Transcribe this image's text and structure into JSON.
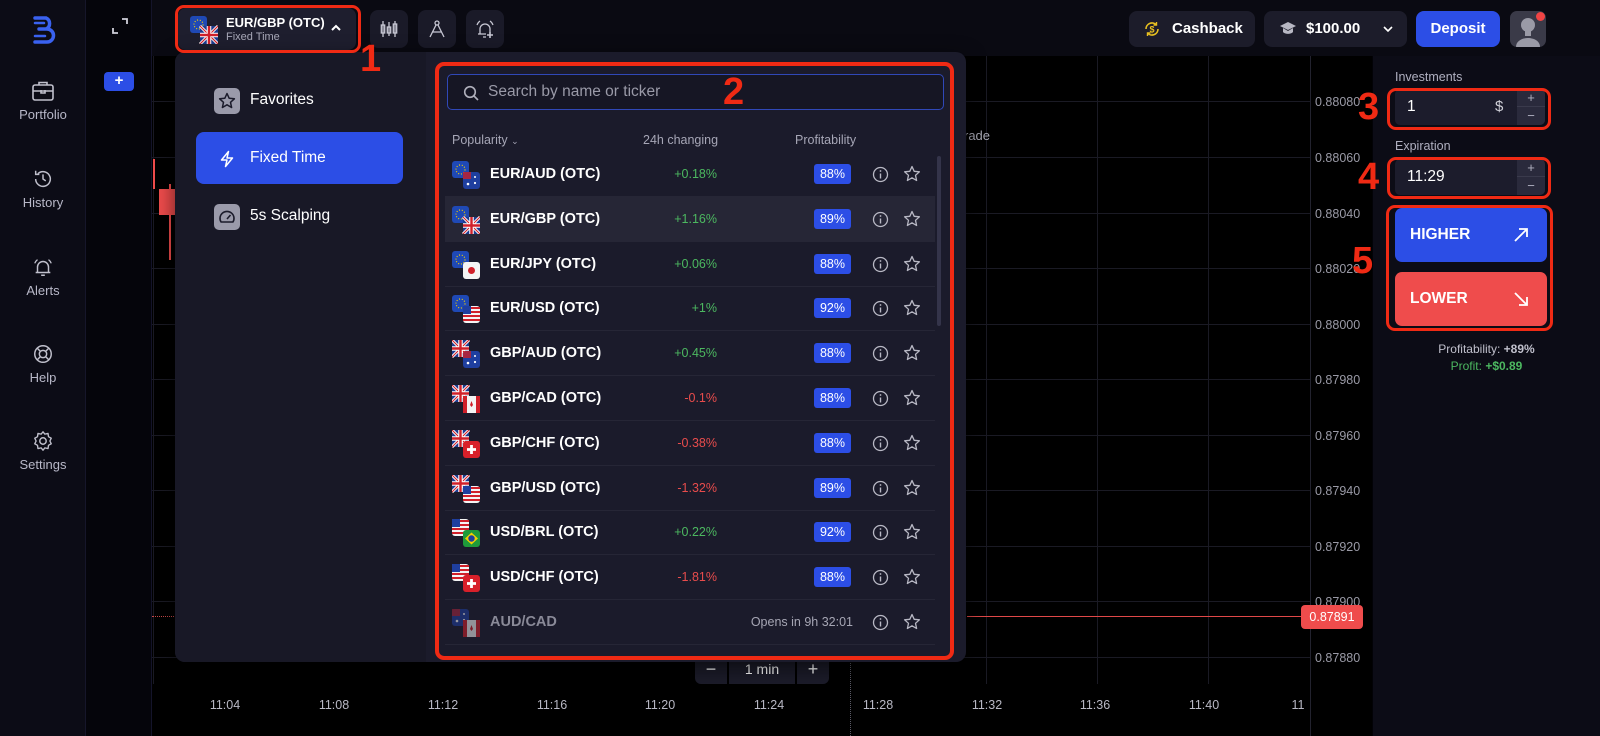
{
  "sidebar": {
    "items": [
      {
        "label": "Portfolio",
        "icon": "briefcase-icon"
      },
      {
        "label": "History",
        "icon": "history-icon"
      },
      {
        "label": "Alerts",
        "icon": "bell-icon"
      },
      {
        "label": "Help",
        "icon": "lifebuoy-icon"
      },
      {
        "label": "Settings",
        "icon": "gear-icon"
      }
    ],
    "add_chart_label": "+"
  },
  "header": {
    "asset": {
      "name": "EUR/GBP (OTC)",
      "mode": "Fixed Time"
    },
    "tools": [
      "candlestick-chart-icon",
      "drawing-compass-icon",
      "add-alert-icon"
    ],
    "cashback_label": "Cashback",
    "balance": "$100.00",
    "deposit_label": "Deposit"
  },
  "asset_menu": {
    "categories": [
      {
        "label": "Favorites",
        "icon": "star-icon",
        "active": false
      },
      {
        "label": "Fixed Time",
        "icon": "lightning-icon",
        "active": true
      },
      {
        "label": "5s Scalping",
        "icon": "speedometer-icon",
        "active": false
      }
    ],
    "search": {
      "placeholder": "Search by name or ticker",
      "value": ""
    },
    "columns": {
      "popularity": "Popularity",
      "change": "24h changing",
      "profitability": "Profitability"
    },
    "assets": [
      {
        "pair": "EUR/AUD (OTC)",
        "change": "+0.18%",
        "dir": "up",
        "profitability": "88%",
        "flags": [
          "EU",
          "AU"
        ]
      },
      {
        "pair": "EUR/GBP (OTC)",
        "change": "+1.16%",
        "dir": "up",
        "profitability": "89%",
        "flags": [
          "EU",
          "GB"
        ],
        "selected": true
      },
      {
        "pair": "EUR/JPY (OTC)",
        "change": "+0.06%",
        "dir": "up",
        "profitability": "88%",
        "flags": [
          "EU",
          "JP"
        ]
      },
      {
        "pair": "EUR/USD (OTC)",
        "change": "+1%",
        "dir": "up",
        "profitability": "92%",
        "flags": [
          "EU",
          "US"
        ]
      },
      {
        "pair": "GBP/AUD (OTC)",
        "change": "+0.45%",
        "dir": "up",
        "profitability": "88%",
        "flags": [
          "GB",
          "AU"
        ]
      },
      {
        "pair": "GBP/CAD (OTC)",
        "change": "-0.1%",
        "dir": "down",
        "profitability": "88%",
        "flags": [
          "GB",
          "CA"
        ]
      },
      {
        "pair": "GBP/CHF (OTC)",
        "change": "-0.38%",
        "dir": "down",
        "profitability": "88%",
        "flags": [
          "GB",
          "CH"
        ]
      },
      {
        "pair": "GBP/USD (OTC)",
        "change": "-1.32%",
        "dir": "down",
        "profitability": "89%",
        "flags": [
          "GB",
          "US"
        ]
      },
      {
        "pair": "USD/BRL (OTC)",
        "change": "+0.22%",
        "dir": "up",
        "profitability": "92%",
        "flags": [
          "US",
          "BR"
        ]
      },
      {
        "pair": "USD/CHF (OTC)",
        "change": "-1.81%",
        "dir": "down",
        "profitability": "88%",
        "flags": [
          "US",
          "CH"
        ]
      },
      {
        "pair": "AUD/CAD",
        "opens": "Opens in 9h 32:01",
        "closed": true,
        "flags": [
          "AU",
          "CA"
        ]
      }
    ]
  },
  "chart": {
    "overlay_text": "rade",
    "y_labels": [
      "0.88080",
      "0.88060",
      "0.88040",
      "0.88020",
      "0.88000",
      "0.87980",
      "0.87960",
      "0.87940",
      "0.87920",
      "0.87900",
      "0.87880"
    ],
    "x_labels": [
      "11:04",
      "11:08",
      "11:12",
      "11:16",
      "11:20",
      "11:24",
      "11:28",
      "11:32",
      "11:36",
      "11:40",
      "11"
    ],
    "current_price": "0.87891",
    "timeframe": "1 min",
    "zoom_minus": "−",
    "zoom_plus": "+"
  },
  "trade_panel": {
    "investments_label": "Investments",
    "investment_value": "1",
    "currency": "$",
    "expiration_label": "Expiration",
    "expiration_value": "11:29",
    "stepper_plus": "+",
    "stepper_minus": "−",
    "higher_label": "HIGHER",
    "lower_label": "LOWER",
    "profitability_label": "Profitability:",
    "profitability_value": "+89%",
    "profit_label": "Profit:",
    "profit_value": "+$0.89"
  },
  "annotations": [
    "1",
    "2",
    "3",
    "4",
    "5"
  ],
  "colors": {
    "accent": "#2c4ee6",
    "down": "#ef4c4c",
    "up": "#4cb860",
    "annotation": "#f02a14"
  }
}
